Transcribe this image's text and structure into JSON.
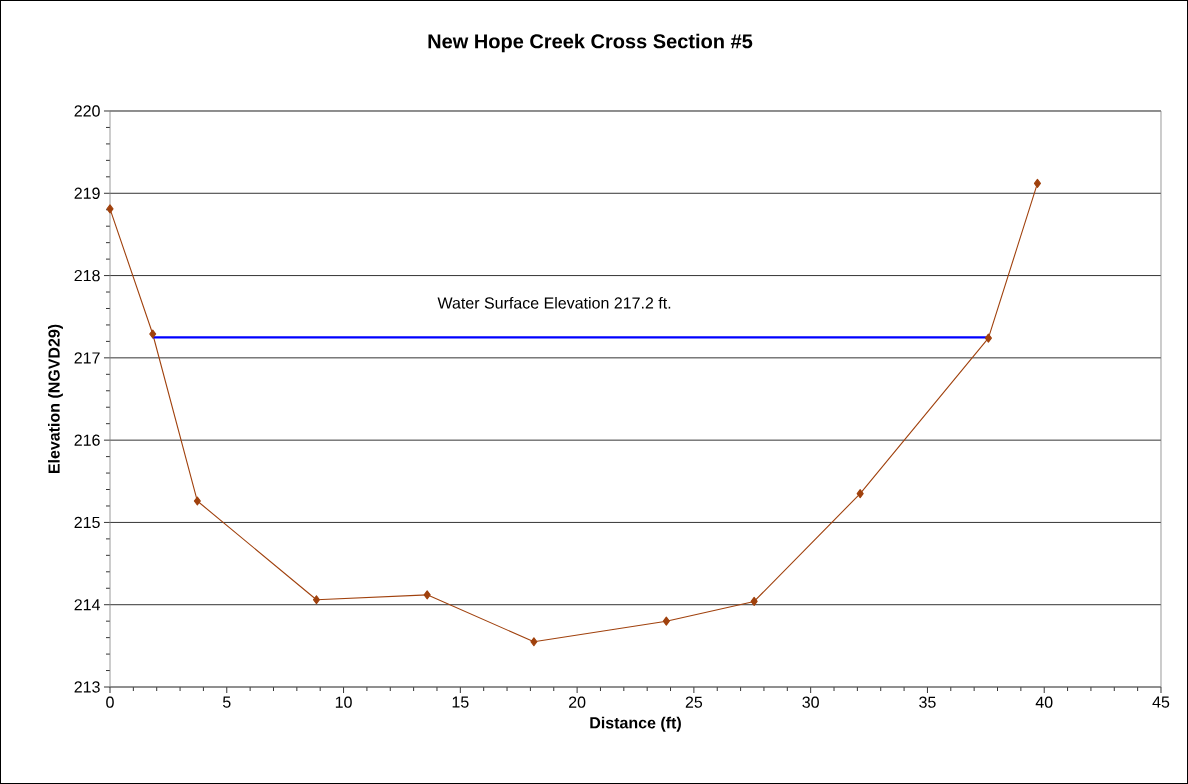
{
  "chart_data": {
    "type": "line",
    "title": "New Hope Creek Cross Section #5",
    "xlabel": "Distance (ft)",
    "ylabel": "Elevation (NGVD29)",
    "x": [
      0,
      1.83,
      3.74,
      8.84,
      13.58,
      18.15,
      23.82,
      27.58,
      32.12,
      37.61,
      39.71
    ],
    "series": [
      {
        "color": "#a0410d",
        "values": [
          218.81,
          217.29,
          215.26,
          214.06,
          214.12,
          213.55,
          213.8,
          214.04,
          215.35,
          217.24,
          219.12
        ],
        "marker": "diamond"
      },
      {
        "color": "#0000ff",
        "x": [
          1.83,
          37.61
        ],
        "values": [
          217.25,
          217.25
        ],
        "marker": "none"
      }
    ],
    "annotations": [
      "Water Surface Elevation 217.2 ft."
    ],
    "xlim": [
      0,
      45
    ],
    "xticks": [
      0,
      5,
      10,
      15,
      20,
      25,
      30,
      35,
      40,
      45
    ],
    "ylim": [
      213,
      220
    ],
    "yticks": [
      213,
      214,
      215,
      216,
      217,
      218,
      219,
      220
    ],
    "grid": "y"
  }
}
